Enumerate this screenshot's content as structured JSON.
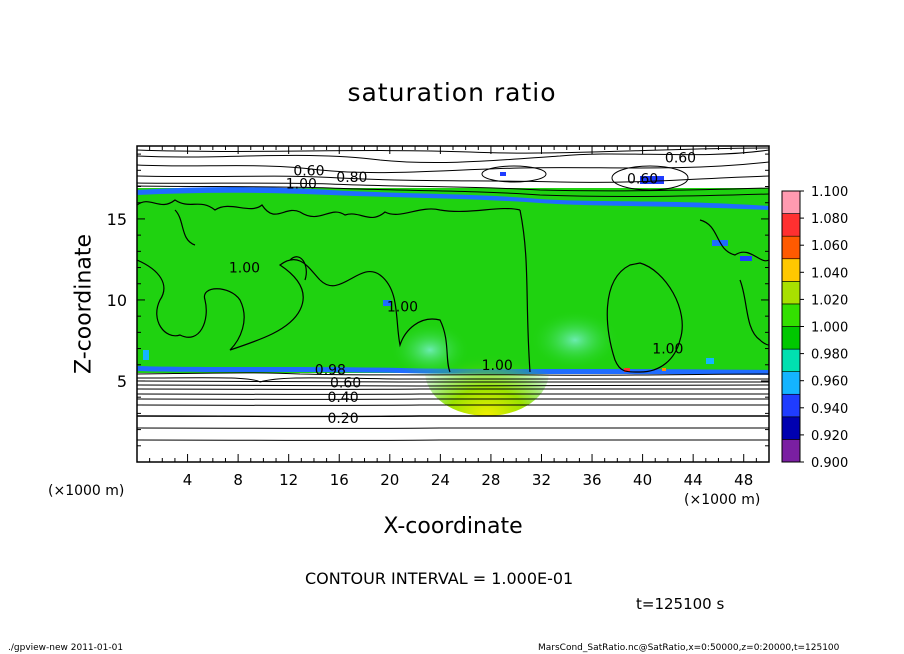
{
  "chart_data": {
    "type": "heatmap",
    "title": "saturation ratio",
    "xlabel": "X-coordinate",
    "ylabel": "Z-coordinate",
    "x_unit": "(×1000 m)",
    "xlim": [
      0,
      50
    ],
    "ylim": [
      0,
      19.5
    ],
    "x_ticks": [
      4,
      8,
      12,
      16,
      20,
      24,
      28,
      32,
      36,
      40,
      44,
      48
    ],
    "y_ticks": [
      5,
      10,
      15
    ],
    "colorbar": {
      "levels": [
        0.9,
        0.92,
        0.94,
        0.96,
        0.98,
        1.0,
        1.02,
        1.04,
        1.06,
        1.08,
        1.1
      ],
      "labels": [
        "0.900",
        "0.920",
        "0.940",
        "0.960",
        "0.980",
        "1.000",
        "1.020",
        "1.040",
        "1.060",
        "1.080",
        "1.100"
      ],
      "colors": [
        "#7a1fa2",
        "#0000b0",
        "#1f3cff",
        "#14b4ff",
        "#00e0b0",
        "#00c800",
        "#33e000",
        "#a8e000",
        "#ffc800",
        "#ff5a00",
        "#ff3030",
        "#ff9ab0"
      ]
    },
    "contour_labels": [
      {
        "text": "0.60",
        "x": 13.6,
        "z": 18.0
      },
      {
        "text": "0.80",
        "x": 17.0,
        "z": 17.6
      },
      {
        "text": "1.00",
        "x": 13.0,
        "z": 17.2
      },
      {
        "text": "0.60",
        "x": 43.0,
        "z": 18.8
      },
      {
        "text": "0.60",
        "x": 40.0,
        "z": 17.5
      },
      {
        "text": "1.00",
        "x": 8.5,
        "z": 12.0
      },
      {
        "text": "1.00",
        "x": 21.0,
        "z": 9.6
      },
      {
        "text": "1.00",
        "x": 28.5,
        "z": 6.0
      },
      {
        "text": "1.00",
        "x": 42.0,
        "z": 7.0
      },
      {
        "text": "0.98",
        "x": 15.3,
        "z": 5.7
      },
      {
        "text": "0.60",
        "x": 16.5,
        "z": 4.9
      },
      {
        "text": "0.40",
        "x": 16.3,
        "z": 4.0
      },
      {
        "text": "0.20",
        "x": 16.3,
        "z": 2.7
      }
    ],
    "contour_interval": "CONTOUR INTERVAL = 1.000E-01",
    "time": "t=125100 s"
  },
  "footer": {
    "left": "./gpview-new   2011-01-01",
    "right": "MarsCond_SatRatio.nc@SatRatio,x=0:50000,z=0:20000,t=125100"
  }
}
